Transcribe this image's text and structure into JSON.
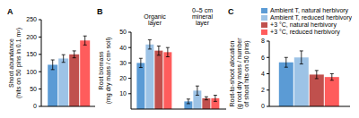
{
  "chart_data": [
    {
      "type": "bar",
      "panel_label": "A",
      "y_label": [
        "Shoot abundance",
        "(hits on 50 pins in 0.1 m²)"
      ],
      "categories": [
        null
      ],
      "series": [
        {
          "name": "Ambient T, natural herbivory",
          "color": "#5b9bd5",
          "values": [
            120
          ],
          "errors": [
            14
          ]
        },
        {
          "name": "Ambient T, reduced herbivory",
          "color": "#9dc3e6",
          "values": [
            138
          ],
          "errors": [
            11
          ]
        },
        {
          "name": "+3 °C, natural herbivory",
          "color": "#c0504d",
          "values": [
            150
          ],
          "errors": [
            10
          ]
        },
        {
          "name": "+3 °C, reduced herbivory",
          "color": "#ff5c5c",
          "values": [
            190
          ],
          "errors": [
            13
          ]
        }
      ],
      "ylim": [
        0,
        250
      ],
      "yticks": [
        0,
        50,
        100,
        150,
        200,
        250
      ]
    },
    {
      "type": "bar",
      "panel_label": "B",
      "y_label": [
        "Root biomass",
        "(mg dry mass / cm³ soil)"
      ],
      "categories": [
        "Organic layer",
        "0–5 cm mineral layer"
      ],
      "series": [
        {
          "name": "Ambient T, natural herbivory",
          "color": "#5b9bd5",
          "values": [
            30,
            5
          ],
          "errors": [
            3,
            1.5
          ]
        },
        {
          "name": "Ambient T, reduced herbivory",
          "color": "#9dc3e6",
          "values": [
            42,
            12
          ],
          "errors": [
            3,
            3
          ]
        },
        {
          "name": "+3 °C, natural herbivory",
          "color": "#c0504d",
          "values": [
            38,
            7
          ],
          "errors": [
            3,
            1
          ]
        },
        {
          "name": "+3 °C, reduced herbivory",
          "color": "#ff5c5c",
          "values": [
            37,
            7
          ],
          "errors": [
            3,
            2
          ]
        }
      ],
      "ylim": [
        0,
        50
      ],
      "yticks": [
        0,
        10,
        20,
        30,
        40,
        50
      ]
    },
    {
      "type": "bar",
      "panel_label": "C",
      "y_label": [
        "Root-to-shoot allocation",
        "(g root dry mass / number",
        "of shoot hits on 50 pins)"
      ],
      "categories": [
        null
      ],
      "series": [
        {
          "name": "Ambient T, natural herbivory",
          "color": "#5b9bd5",
          "values": [
            5.4
          ],
          "errors": [
            0.6
          ]
        },
        {
          "name": "Ambient T, reduced herbivory",
          "color": "#9dc3e6",
          "values": [
            6.0
          ],
          "errors": [
            0.8
          ]
        },
        {
          "name": "+3 °C, natural herbivory",
          "color": "#c0504d",
          "values": [
            3.9
          ],
          "errors": [
            0.5
          ]
        },
        {
          "name": "+3 °C, reduced herbivory",
          "color": "#ff5c5c",
          "values": [
            3.6
          ],
          "errors": [
            0.4
          ]
        }
      ],
      "ylim": [
        0,
        8
      ],
      "yticks": [
        0,
        2,
        4,
        6,
        8
      ],
      "legend": "upper right"
    }
  ]
}
